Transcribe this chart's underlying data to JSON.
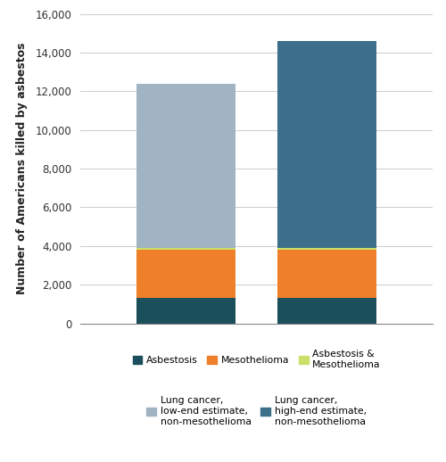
{
  "asbestosis": [
    1300,
    1300
  ],
  "mesothelioma": [
    2500,
    2500
  ],
  "asbestos_meso": [
    100,
    100
  ],
  "lung_cancer_low": 8500,
  "lung_cancer_high": 10700,
  "colors": {
    "asbestosis": "#1c4f5c",
    "mesothelioma": "#f07f2a",
    "asbestos_meso": "#c8e06a",
    "lung_cancer_low": "#a0b4c4",
    "lung_cancer_high": "#3d6e8a"
  },
  "ylabel": "Number of Americans killed by asbestos",
  "ylim": [
    0,
    16000
  ],
  "yticks": [
    0,
    2000,
    4000,
    6000,
    8000,
    10000,
    12000,
    14000,
    16000
  ],
  "legend": {
    "asbestosis": "Asbestosis",
    "mesothelioma": "Mesothelioma",
    "asbestos_meso": "Asbestosis &\nMesothelioma",
    "lung_cancer_low": "Lung cancer,\nlow-end estimate,\nnon-mesothelioma",
    "lung_cancer_high": "Lung cancer,\nhigh-end estimate,\nnon-mesothelioma"
  },
  "background_color": "#ffffff",
  "grid_color": "#cccccc",
  "bar_positions": [
    0.3,
    0.7
  ],
  "bar_width": 0.28
}
